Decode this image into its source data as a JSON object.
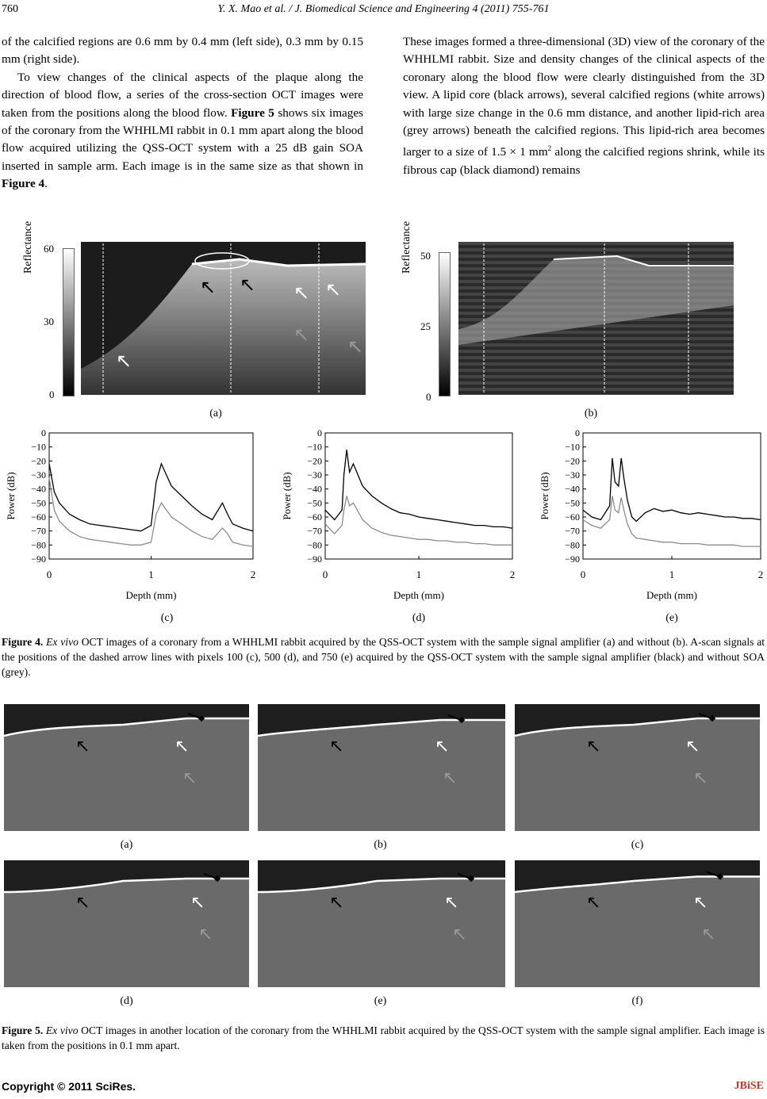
{
  "header": {
    "page_number": "760",
    "running_title": "Y. X. Mao et al. / J. Biomedical Science and Engineering 4 (2011) 755-761"
  },
  "body_left": {
    "p1": "of the calcified regions are 0.6 mm by 0.4 mm (left side), 0.3 mm by 0.15 mm (right side).",
    "p2_a": "To view changes of the clinical aspects of the plaque along the direction of blood flow, a series of the cross-section OCT images were taken from the positions along the blood flow. ",
    "p2_ref1": "Figure 5",
    "p2_b": " shows six images of the coronary from the WHHLMI rabbit in 0.1 mm apart along the blood flow acquired utilizing the QSS-OCT system with a 25 dB gain SOA inserted in sample arm. Each image is in the same size as that shown in ",
    "p2_ref2": "Figure 4",
    "p2_c": "."
  },
  "body_right": {
    "p1_a": "These images formed a three-dimensional (3D) view of the coronary of the WHHLMI rabbit. Size and density changes of the clinical aspects of the coronary along the blood flow were clearly distinguished from the 3D view. A lipid core (black arrows), several calcified regions (white arrows) with large size change in the 0.6 mm distance, and another lipid-rich area (grey arrows) beneath the calcified regions. This lipid-rich area becomes larger to a size of 1.5 × 1 mm",
    "p1_sup": "2",
    "p1_b": " along the calcified regions shrink, while its fibrous cap (black diamond) remains"
  },
  "figure4": {
    "panel_a": {
      "label": "(a)",
      "ylabel": "Reflectance",
      "ticks": [
        "60",
        "30",
        "0"
      ]
    },
    "panel_b": {
      "label": "(b)",
      "ylabel": "Reflectance",
      "ticks": [
        "50",
        "25",
        "0"
      ]
    },
    "caption_label": "Figure 4.",
    "caption_em": "Ex vivo",
    "caption_text": " OCT images of a coronary from a WHHLMI rabbit acquired by the QSS-OCT system with the sample signal amplifier (a) and without (b). A-scan signals at the positions of the dashed arrow lines with pixels 100 (c), 500 (d), and 750 (e) acquired by the QSS-OCT system with the sample signal amplifier (black) and without SOA (grey)."
  },
  "chart_data": [
    {
      "type": "line",
      "panel": "(c)",
      "xlabel": "Depth (mm)",
      "ylabel": "Power (dB)",
      "xlim": [
        0,
        2
      ],
      "ylim": [
        -90,
        0
      ],
      "xticks": [
        "0",
        "1",
        "2"
      ],
      "yticks": [
        "0",
        "−10",
        "−20",
        "−30",
        "−40",
        "−50",
        "−60",
        "−70",
        "−80",
        "−90"
      ],
      "grid": false,
      "series": [
        {
          "color": "#000000",
          "x": [
            0.0,
            0.05,
            0.1,
            0.2,
            0.3,
            0.4,
            0.5,
            0.6,
            0.7,
            0.8,
            0.9,
            1.0,
            1.05,
            1.1,
            1.15,
            1.2,
            1.3,
            1.4,
            1.5,
            1.6,
            1.7,
            1.75,
            1.8,
            1.9,
            2.0
          ],
          "y": [
            -22,
            -42,
            -50,
            -58,
            -62,
            -65,
            -66,
            -67,
            -68,
            -69,
            -70,
            -66,
            -35,
            -22,
            -30,
            -38,
            -45,
            -52,
            -58,
            -62,
            -50,
            -58,
            -65,
            -68,
            -70
          ]
        },
        {
          "color": "#8c8c8c",
          "x": [
            0.0,
            0.05,
            0.1,
            0.2,
            0.3,
            0.4,
            0.5,
            0.6,
            0.7,
            0.8,
            0.9,
            1.0,
            1.05,
            1.1,
            1.15,
            1.2,
            1.3,
            1.4,
            1.5,
            1.6,
            1.7,
            1.75,
            1.8,
            1.9,
            2.0
          ],
          "y": [
            -32,
            -55,
            -63,
            -70,
            -74,
            -76,
            -77,
            -78,
            -79,
            -80,
            -80,
            -78,
            -58,
            -50,
            -55,
            -60,
            -65,
            -70,
            -74,
            -76,
            -68,
            -72,
            -78,
            -80,
            -81
          ]
        }
      ]
    },
    {
      "type": "line",
      "panel": "(d)",
      "xlabel": "Depth (mm)",
      "ylabel": "Power (dB)",
      "xlim": [
        0,
        2
      ],
      "ylim": [
        -90,
        0
      ],
      "xticks": [
        "0",
        "1",
        "2"
      ],
      "yticks": [
        "0",
        "−10",
        "−20",
        "−30",
        "−40",
        "−50",
        "−60",
        "−70",
        "−80",
        "−90"
      ],
      "grid": false,
      "series": [
        {
          "color": "#000000",
          "x": [
            0.0,
            0.1,
            0.18,
            0.2,
            0.23,
            0.26,
            0.3,
            0.35,
            0.4,
            0.5,
            0.6,
            0.7,
            0.8,
            0.9,
            1.0,
            1.1,
            1.2,
            1.3,
            1.4,
            1.5,
            1.6,
            1.7,
            1.8,
            1.9,
            2.0
          ],
          "y": [
            -55,
            -62,
            -55,
            -30,
            -12,
            -28,
            -22,
            -30,
            -38,
            -45,
            -50,
            -54,
            -57,
            -58,
            -60,
            -61,
            -62,
            -63,
            -64,
            -65,
            -66,
            -66,
            -67,
            -67,
            -68
          ]
        },
        {
          "color": "#8c8c8c",
          "x": [
            0.0,
            0.1,
            0.18,
            0.2,
            0.23,
            0.26,
            0.3,
            0.35,
            0.4,
            0.5,
            0.6,
            0.7,
            0.8,
            0.9,
            1.0,
            1.1,
            1.2,
            1.3,
            1.4,
            1.5,
            1.6,
            1.7,
            1.8,
            1.9,
            2.0
          ],
          "y": [
            -65,
            -72,
            -66,
            -55,
            -45,
            -52,
            -50,
            -56,
            -62,
            -68,
            -71,
            -73,
            -74,
            -75,
            -76,
            -76,
            -77,
            -77,
            -78,
            -78,
            -79,
            -79,
            -80,
            -80,
            -80
          ]
        }
      ]
    },
    {
      "type": "line",
      "panel": "(e)",
      "xlabel": "Depth (mm)",
      "ylabel": "Power (dB)",
      "xlim": [
        0,
        2
      ],
      "ylim": [
        -90,
        0
      ],
      "xticks": [
        "0",
        "1",
        "2"
      ],
      "yticks": [
        "0",
        "−10",
        "−20",
        "−30",
        "−40",
        "−50",
        "−60",
        "−70",
        "−80",
        "−90"
      ],
      "grid": false,
      "series": [
        {
          "color": "#000000",
          "x": [
            0.0,
            0.1,
            0.2,
            0.3,
            0.33,
            0.36,
            0.4,
            0.43,
            0.46,
            0.5,
            0.55,
            0.6,
            0.7,
            0.8,
            0.9,
            1.0,
            1.1,
            1.2,
            1.3,
            1.4,
            1.5,
            1.6,
            1.7,
            1.8,
            1.9,
            2.0
          ],
          "y": [
            -55,
            -60,
            -62,
            -52,
            -18,
            -35,
            -38,
            -18,
            -32,
            -48,
            -60,
            -63,
            -57,
            -54,
            -56,
            -55,
            -57,
            -58,
            -57,
            -58,
            -59,
            -60,
            -60,
            -61,
            -61,
            -62
          ]
        },
        {
          "color": "#8c8c8c",
          "x": [
            0.0,
            0.1,
            0.2,
            0.3,
            0.33,
            0.36,
            0.4,
            0.43,
            0.46,
            0.5,
            0.55,
            0.6,
            0.7,
            0.8,
            0.9,
            1.0,
            1.1,
            1.2,
            1.3,
            1.4,
            1.5,
            1.6,
            1.7,
            1.8,
            1.9,
            2.0
          ],
          "y": [
            -62,
            -66,
            -68,
            -62,
            -45,
            -55,
            -57,
            -46,
            -55,
            -65,
            -72,
            -75,
            -76,
            -77,
            -78,
            -78,
            -79,
            -79,
            -79,
            -80,
            -80,
            -80,
            -80,
            -81,
            -81,
            -81
          ]
        }
      ]
    }
  ],
  "figure5": {
    "labels": [
      "(a)",
      "(b)",
      "(c)",
      "(d)",
      "(e)",
      "(f)"
    ],
    "caption_label": "Figure 5.",
    "caption_em": "Ex vivo",
    "caption_text": " OCT images in another location of the coronary from the WHHLMI rabbit acquired by the QSS-OCT system with the sample signal amplifier. Each image is taken from the positions in 0.1 mm apart."
  },
  "footer": {
    "copyright": "Copyright © 2011 SciRes.",
    "journal": "JBiSE",
    "journal_color": "#c0392b"
  }
}
